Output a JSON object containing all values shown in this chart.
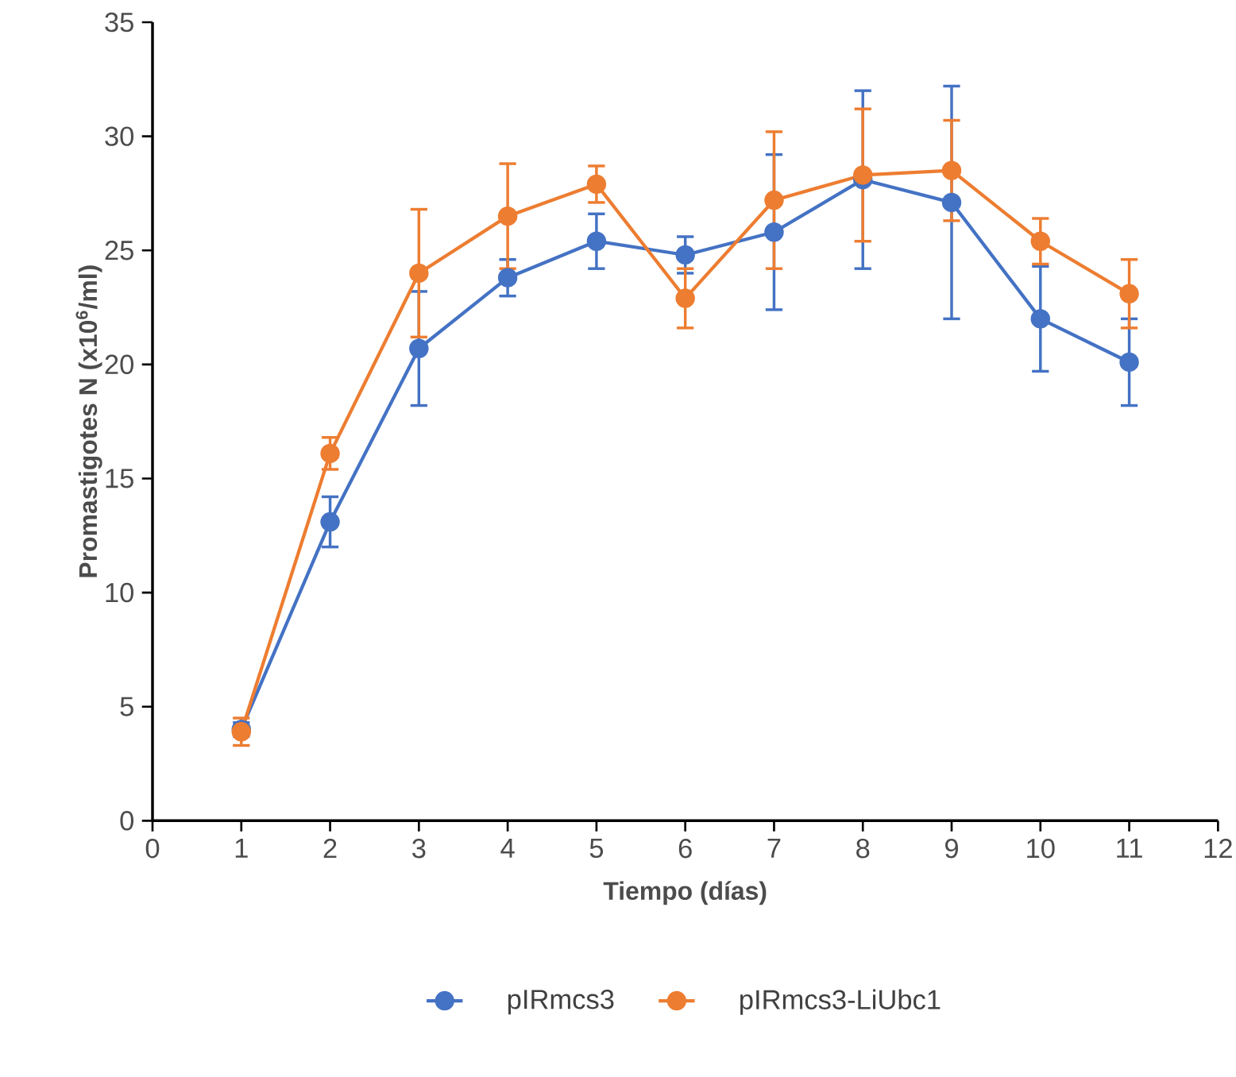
{
  "chart_data": {
    "type": "line",
    "xlabel": "Tiempo (días)",
    "ylabel": "Promastigotes N (x10$^{6}$/ml)",
    "x": [
      1,
      2,
      3,
      4,
      5,
      6,
      7,
      8,
      9,
      10,
      11
    ],
    "series": [
      {
        "name": "pIRmcs3",
        "color": "#4472c4",
        "values": [
          4.0,
          13.1,
          20.7,
          23.8,
          25.4,
          24.8,
          25.8,
          28.1,
          27.1,
          22.0,
          20.1
        ],
        "errors": [
          0.3,
          1.1,
          2.5,
          0.8,
          1.2,
          0.8,
          3.4,
          3.9,
          5.1,
          2.3,
          1.9
        ]
      },
      {
        "name": "pIRmcs3-LiUbc1",
        "color": "#ed7d31",
        "values": [
          3.9,
          16.1,
          24.0,
          26.5,
          27.9,
          22.9,
          27.2,
          28.3,
          28.5,
          25.4,
          23.1
        ],
        "errors": [
          0.6,
          0.7,
          2.8,
          2.3,
          0.8,
          1.3,
          3.0,
          2.9,
          2.2,
          1.0,
          1.5
        ]
      }
    ],
    "xlim": [
      0,
      12
    ],
    "xticks": [
      0,
      1,
      2,
      3,
      4,
      5,
      6,
      7,
      8,
      9,
      10,
      11,
      12
    ],
    "ylim": [
      0,
      35
    ],
    "yticks": [
      0,
      5,
      10,
      15,
      20,
      25,
      30,
      35
    ],
    "grid": false,
    "legend": "bottom",
    "marker": "circle",
    "line_style": "solid"
  }
}
